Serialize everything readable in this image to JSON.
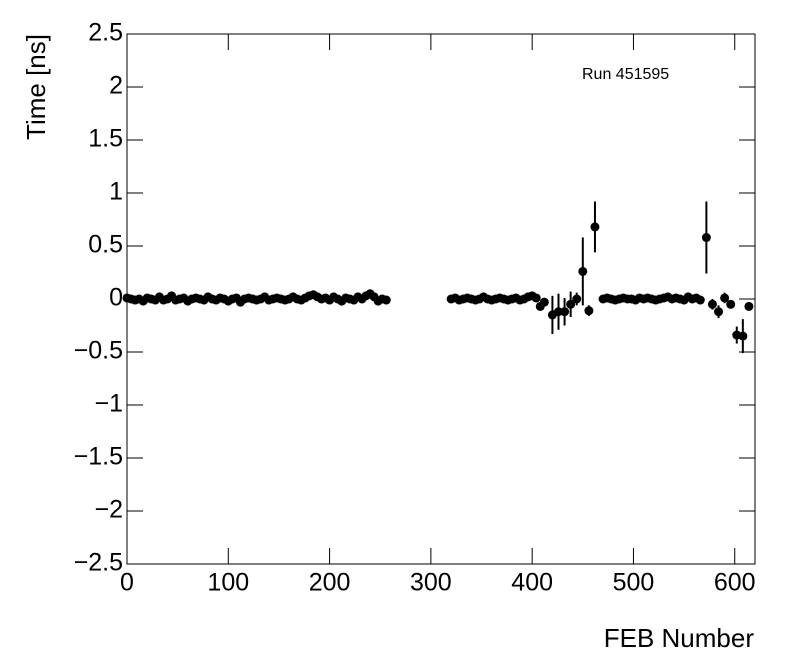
{
  "chart_data": {
    "type": "scatter",
    "x_label": "FEB Number",
    "y_label": "Time [ns]",
    "annotation": "Run 451595",
    "xlim": [
      0,
      620
    ],
    "xticks": [
      0,
      100,
      200,
      300,
      400,
      500,
      600
    ],
    "ylim": [
      -2.5,
      2.5
    ],
    "yticks": [
      {
        "value": -2.5,
        "label": "−2.5"
      },
      {
        "value": -2,
        "label": "−2"
      },
      {
        "value": -1.5,
        "label": "−1.5"
      },
      {
        "value": -1,
        "label": "−1"
      },
      {
        "value": -0.5,
        "label": "−0.5"
      },
      0,
      0.5,
      1,
      1.5,
      2,
      2.5
    ],
    "color": "#000000",
    "x": [
      0,
      4,
      8,
      12,
      16,
      20,
      24,
      28,
      32,
      36,
      40,
      44,
      48,
      52,
      56,
      60,
      64,
      68,
      72,
      76,
      80,
      84,
      88,
      92,
      96,
      100,
      104,
      108,
      112,
      116,
      120,
      124,
      128,
      132,
      136,
      140,
      144,
      148,
      152,
      156,
      160,
      164,
      168,
      172,
      176,
      180,
      184,
      188,
      192,
      196,
      200,
      204,
      208,
      212,
      216,
      220,
      224,
      228,
      232,
      236,
      240,
      244,
      248,
      252,
      256,
      320,
      324,
      328,
      332,
      336,
      340,
      344,
      348,
      352,
      356,
      360,
      364,
      368,
      372,
      376,
      380,
      384,
      388,
      392,
      396,
      400,
      404,
      408,
      412,
      420,
      426,
      432,
      438,
      444,
      450,
      456,
      462,
      470,
      474,
      478,
      482,
      486,
      490,
      494,
      498,
      502,
      506,
      510,
      514,
      518,
      522,
      526,
      530,
      534,
      538,
      542,
      546,
      550,
      554,
      558,
      562,
      566,
      572,
      578,
      584,
      590,
      596,
      602,
      608,
      614
    ],
    "values": [
      0.01,
      0,
      -0.01,
      0,
      -0.02,
      0.01,
      0,
      -0.01,
      0.02,
      -0.01,
      0,
      0.03,
      -0.01,
      0,
      0.01,
      -0.02,
      0,
      0.01,
      0,
      -0.01,
      0.02,
      0,
      -0.01,
      0.01,
      0,
      -0.02,
      0,
      0.01,
      -0.03,
      0,
      0.01,
      0,
      -0.01,
      0,
      0.02,
      -0.01,
      0,
      0.01,
      0,
      -0.01,
      0,
      0.02,
      0,
      -0.01,
      0.01,
      0.03,
      0.04,
      0.02,
      0,
      0.01,
      -0.01,
      0.02,
      0,
      -0.02,
      0.01,
      0,
      -0.01,
      0.02,
      0,
      0.03,
      0.05,
      0.02,
      -0.02,
      0,
      -0.01,
      0,
      0.01,
      -0.01,
      0,
      0.01,
      0,
      -0.01,
      0,
      0.02,
      0,
      -0.01,
      0,
      0.01,
      0,
      -0.01,
      0,
      0.01,
      -0.01,
      0,
      0.02,
      0.03,
      0.01,
      -0.07,
      -0.03,
      -0.15,
      -0.12,
      -0.12,
      -0.05,
      0,
      0.26,
      -0.11,
      0.68,
      0,
      0.01,
      0,
      -0.01,
      0,
      0.01,
      0,
      0,
      -0.01,
      0.01,
      0,
      0.01,
      0,
      -0.01,
      0,
      0.01,
      0.02,
      0,
      0.01,
      0,
      -0.01,
      0.02,
      0,
      0.01,
      -0.01,
      0.58,
      -0.05,
      -0.12,
      0.01,
      -0.05,
      -0.34,
      -0.35,
      -0.07
    ],
    "errors": [
      0.01,
      0.01,
      0.01,
      0.01,
      0.01,
      0.01,
      0.01,
      0.01,
      0.01,
      0.01,
      0.01,
      0.01,
      0.01,
      0.01,
      0.01,
      0.01,
      0.01,
      0.01,
      0.01,
      0.01,
      0.01,
      0.01,
      0.01,
      0.01,
      0.01,
      0.01,
      0.01,
      0.01,
      0.01,
      0.01,
      0.01,
      0.01,
      0.01,
      0.01,
      0.01,
      0.01,
      0.01,
      0.01,
      0.01,
      0.01,
      0.01,
      0.01,
      0.01,
      0.01,
      0.01,
      0.01,
      0.01,
      0.01,
      0.01,
      0.01,
      0.01,
      0.01,
      0.01,
      0.01,
      0.01,
      0.01,
      0.01,
      0.01,
      0.01,
      0.01,
      0.01,
      0.01,
      0.01,
      0.01,
      0.01,
      0.01,
      0.01,
      0.01,
      0.01,
      0.01,
      0.01,
      0.01,
      0.01,
      0.01,
      0.01,
      0.01,
      0.01,
      0.01,
      0.01,
      0.01,
      0.01,
      0.01,
      0.01,
      0.01,
      0.01,
      0.01,
      0.01,
      0.03,
      0.02,
      0.18,
      0.17,
      0.13,
      0.12,
      0.06,
      0.32,
      0.05,
      0.24,
      0.01,
      0.01,
      0.01,
      0.01,
      0.01,
      0.01,
      0.01,
      0.01,
      0.01,
      0.01,
      0.01,
      0.01,
      0.01,
      0.01,
      0.01,
      0.01,
      0.01,
      0.01,
      0.01,
      0.01,
      0.01,
      0.01,
      0.01,
      0.01,
      0.01,
      0.34,
      0.05,
      0.06,
      0.05,
      0.04,
      0.08,
      0.16,
      0.03
    ]
  }
}
